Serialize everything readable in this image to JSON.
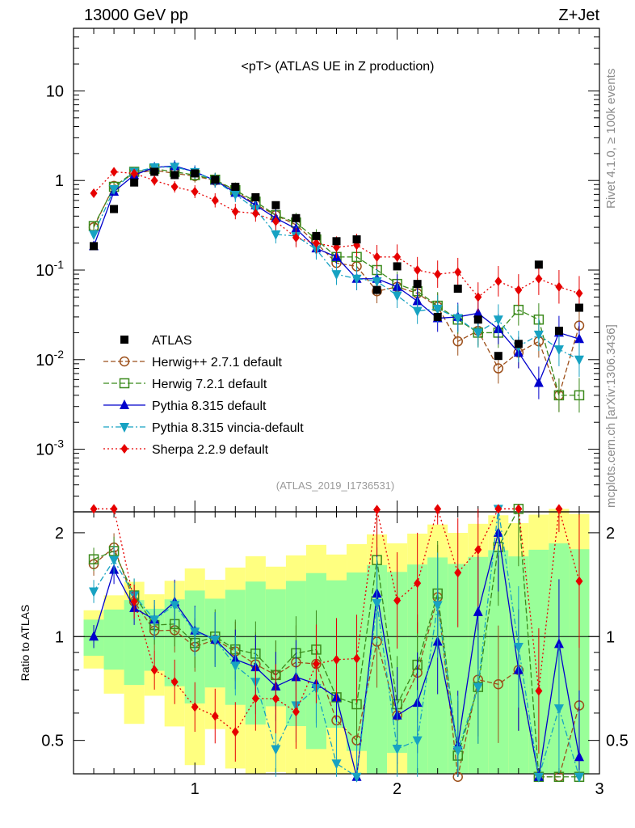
{
  "header": {
    "left": "13000 GeV pp",
    "right": "Z+Jet",
    "plot_title": "<pT> (ATLAS UE in Z production)",
    "side_top": "Rivet 4.1.0, ≥ 100k events",
    "side_bottom": "mcplots.cern.ch [arXiv:1306.3436]",
    "analysis": "(ATLAS_2019_I1736531)",
    "ratio_ylabel": "Ratio to ATLAS"
  },
  "chart_data": {
    "type": "scatter",
    "x_range": [
      0.4,
      3.0
    ],
    "ylim": [
      0.0002,
      50
    ],
    "yscale": "log",
    "ratio_ylim": [
      0.4,
      2.3
    ],
    "x_ticks": [
      "1",
      "2",
      "3"
    ],
    "y_ticks": [
      "10^{-3}",
      "10^{-2}",
      "10^{-1}",
      "1",
      "10"
    ],
    "ratio_ticks": [
      "0.5",
      "1",
      "2"
    ],
    "x": [
      0.5,
      0.6,
      0.7,
      0.8,
      0.9,
      1.0,
      1.1,
      1.2,
      1.3,
      1.4,
      1.5,
      1.6,
      1.7,
      1.8,
      1.9,
      2.0,
      2.1,
      2.2,
      2.3,
      2.4,
      2.5,
      2.6,
      2.7,
      2.8,
      2.9
    ],
    "series": [
      {
        "name": "ATLAS",
        "color": "#000000",
        "style": "data",
        "values": [
          0.185,
          0.48,
          0.95,
          1.25,
          1.15,
          1.2,
          1.02,
          0.85,
          0.65,
          0.53,
          0.38,
          0.24,
          0.21,
          0.22,
          0.06,
          0.11,
          0.07,
          0.03,
          0.062,
          0.028,
          0.011,
          0.015,
          0.115,
          0.021,
          0.038
        ]
      },
      {
        "name": "Herwig++ 2.7.1 default",
        "color": "#9c4f1a",
        "style": "circle",
        "dash": "6,3",
        "values": [
          0.3,
          0.87,
          1.2,
          1.3,
          1.2,
          1.12,
          1.0,
          0.77,
          0.54,
          0.41,
          0.32,
          0.2,
          0.12,
          0.11,
          0.058,
          0.065,
          0.055,
          0.039,
          0.016,
          0.021,
          0.008,
          0.012,
          0.016,
          0.004,
          0.024
        ]
      },
      {
        "name": "Herwig 7.2.1 default",
        "color": "#3b8a1c",
        "style": "square",
        "dash": "7,3",
        "values": [
          0.31,
          0.85,
          1.25,
          1.35,
          1.25,
          1.15,
          1.02,
          0.78,
          0.58,
          0.41,
          0.34,
          0.22,
          0.14,
          0.14,
          0.1,
          0.07,
          0.058,
          0.04,
          0.028,
          0.02,
          0.02,
          0.036,
          0.028,
          0.004,
          0.004
        ]
      },
      {
        "name": "Pythia 8.315 default",
        "color": "#0000cc",
        "style": "up",
        "dash": "",
        "values": [
          0.185,
          0.75,
          1.15,
          1.4,
          1.45,
          1.25,
          1.0,
          0.73,
          0.53,
          0.38,
          0.29,
          0.175,
          0.14,
          0.08,
          0.08,
          0.065,
          0.045,
          0.029,
          0.03,
          0.033,
          0.022,
          0.012,
          0.0055,
          0.02,
          0.017
        ]
      },
      {
        "name": "Pythia 8.315 vincia-default",
        "color": "#17a2c2",
        "style": "down",
        "dash": "7,3,2,3",
        "values": [
          0.25,
          0.8,
          1.25,
          1.4,
          1.42,
          1.24,
          1.0,
          0.7,
          0.48,
          0.25,
          0.24,
          0.17,
          0.09,
          0.08,
          0.075,
          0.052,
          0.035,
          0.037,
          0.029,
          0.02,
          0.028,
          0.014,
          0.019,
          0.013,
          0.01
        ]
      },
      {
        "name": "Sherpa 2.2.9 default",
        "color": "#e60000",
        "style": "diamond",
        "dash": "2,3",
        "values": [
          0.72,
          1.25,
          1.2,
          1.0,
          0.85,
          0.75,
          0.6,
          0.45,
          0.43,
          0.35,
          0.23,
          0.2,
          0.18,
          0.19,
          0.14,
          0.14,
          0.1,
          0.09,
          0.095,
          0.05,
          0.075,
          0.06,
          0.08,
          0.065,
          0.055
        ]
      }
    ]
  }
}
